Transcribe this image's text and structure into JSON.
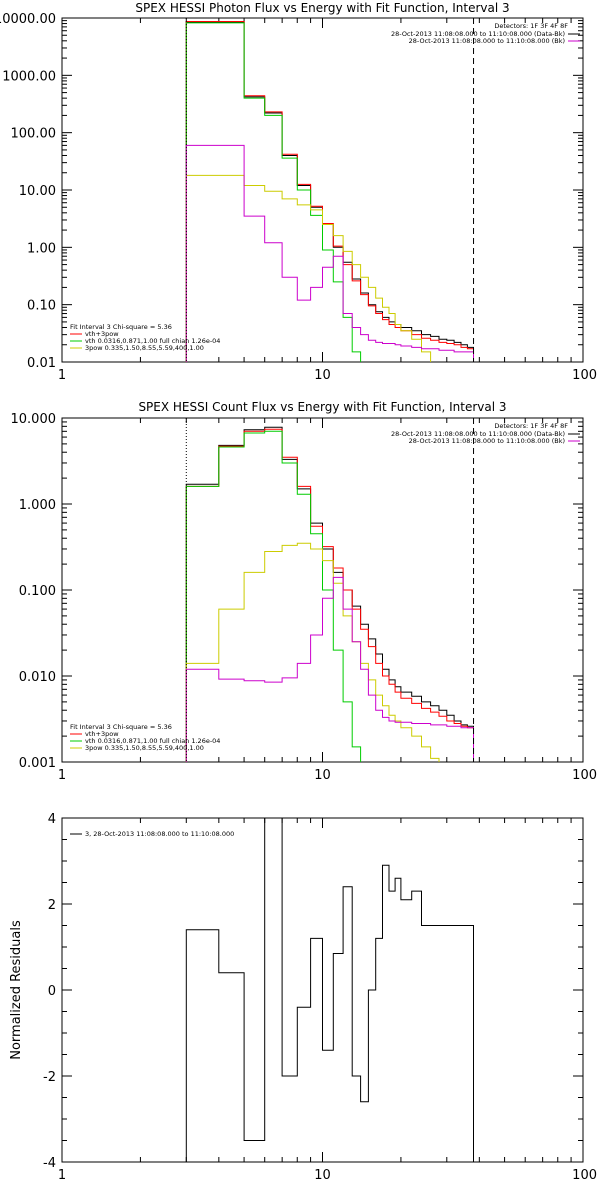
{
  "chart_data": [
    {
      "type": "line",
      "step": true,
      "title": "SPEX HESSI Photon Flux vs Energy with Fit Function, Interval 3",
      "xscale": "log",
      "yscale": "log",
      "xlim": [
        1,
        100
      ],
      "ylim": [
        0.01,
        10000
      ],
      "xticks": [
        1,
        10,
        100
      ],
      "xtick_labels": [
        "1",
        "10",
        "100"
      ],
      "yticks": [
        0.01,
        0.1,
        1,
        10,
        100,
        1000,
        10000
      ],
      "ytick_labels": [
        "0.01",
        "0.10",
        "1.00",
        "10.00",
        "100.00",
        "1000.00",
        "10000.00"
      ],
      "vlines": [
        {
          "x": 3,
          "style": "dotted"
        },
        {
          "x": 38,
          "style": "dashed"
        }
      ],
      "info": {
        "detectors": "Detectors: 1F 3F 4F 8F",
        "lines": [
          {
            "text": "28-Oct-2013 11:08:08.000 to 11:10:08.000 (Data-Bk)",
            "color": "#000000"
          },
          {
            "text": "28-Oct-2013 11:08:08.000 to 11:10:08.000 (Bk)",
            "color": "#cc00cc"
          }
        ]
      },
      "legend": {
        "header": "Fit Interval 3   Chi-square = 5.36",
        "entries": [
          {
            "text": "vth+3pow",
            "color": "#ff0000"
          },
          {
            "text": "vth 0.0316,0.871,1.00  full chian 1.26e-04",
            "color": "#00cc00"
          },
          {
            "text": "3pow 0.335,1.50,8.55,5.59,400,1.00",
            "color": "#cccc00"
          }
        ]
      },
      "series": [
        {
          "color": "#000000",
          "edges": [
            3,
            4,
            5,
            6,
            7,
            8,
            9,
            10,
            11,
            12,
            13,
            14,
            15,
            16,
            17,
            18,
            19,
            20,
            22,
            24,
            26,
            28,
            30,
            32,
            34,
            36,
            38
          ],
          "values": [
            8500,
            8500,
            420,
            220,
            40,
            12,
            5.0,
            2.5,
            1.0,
            0.55,
            0.28,
            0.16,
            0.1,
            0.075,
            0.06,
            0.05,
            0.045,
            0.04,
            0.035,
            0.03,
            0.028,
            0.025,
            0.024,
            0.022,
            0.02,
            0.018
          ]
        },
        {
          "color": "#ff0000",
          "edges": [
            3,
            4,
            5,
            6,
            7,
            8,
            9,
            10,
            11,
            12,
            13,
            14,
            15,
            16,
            17,
            18,
            19,
            20,
            22,
            24,
            26,
            28,
            30,
            32,
            34,
            36,
            38
          ],
          "values": [
            8700,
            8700,
            440,
            230,
            42,
            12.5,
            5.2,
            2.6,
            1.05,
            0.5,
            0.26,
            0.15,
            0.095,
            0.07,
            0.055,
            0.045,
            0.04,
            0.035,
            0.03,
            0.026,
            0.024,
            0.022,
            0.021,
            0.02,
            0.018,
            0.017
          ]
        },
        {
          "color": "#00cc00",
          "edges": [
            3,
            4,
            5,
            6,
            7,
            8,
            9,
            10,
            11,
            12,
            13,
            14
          ],
          "values": [
            8200,
            8200,
            400,
            200,
            36,
            10,
            3.6,
            0.9,
            0.25,
            0.06,
            0.015
          ]
        },
        {
          "color": "#cccc00",
          "edges": [
            3,
            4,
            5,
            6,
            7,
            8,
            9,
            10,
            11,
            12,
            13,
            14,
            15,
            16,
            17,
            18,
            19,
            20,
            22,
            24,
            26
          ],
          "values": [
            18,
            18,
            12,
            9.5,
            7,
            5.5,
            4.5,
            2.5,
            1.6,
            0.85,
            0.5,
            0.3,
            0.2,
            0.13,
            0.09,
            0.07,
            0.045,
            0.035,
            0.025,
            0.015
          ]
        },
        {
          "color": "#cc00cc",
          "edges": [
            3,
            4,
            5,
            6,
            7,
            8,
            9,
            10,
            11,
            12,
            13,
            14,
            15,
            16,
            17,
            18,
            19,
            20,
            22,
            24,
            26,
            28,
            30,
            32,
            34,
            36,
            38
          ],
          "values": [
            60,
            60,
            3.5,
            1.2,
            0.3,
            0.12,
            0.2,
            0.45,
            0.7,
            0.07,
            0.04,
            0.03,
            0.024,
            0.022,
            0.021,
            0.021,
            0.02,
            0.019,
            0.018,
            0.017,
            0.017,
            0.016,
            0.016,
            0.015,
            0.015,
            0.015
          ]
        }
      ]
    },
    {
      "type": "line",
      "step": true,
      "title": "SPEX HESSI Count Flux vs Energy with Fit Function, Interval 3",
      "xscale": "log",
      "yscale": "log",
      "xlim": [
        1,
        100
      ],
      "ylim": [
        0.001,
        10
      ],
      "xticks": [
        1,
        10,
        100
      ],
      "xtick_labels": [
        "1",
        "10",
        "100"
      ],
      "yticks": [
        0.001,
        0.01,
        0.1,
        1,
        10
      ],
      "ytick_labels": [
        "0.001",
        "0.010",
        "0.100",
        "1.000",
        "10.000"
      ],
      "vlines": [
        {
          "x": 3,
          "style": "dotted"
        },
        {
          "x": 38,
          "style": "dashed"
        }
      ],
      "info": {
        "detectors": "Detectors: 1F 3F 4F 8F",
        "lines": [
          {
            "text": "28-Oct-2013 11:08:08.000 to 11:10:08.000 (Data-Bk)",
            "color": "#000000"
          },
          {
            "text": "28-Oct-2013 11:08:08.000 to 11:10:08.000 (Bk)",
            "color": "#cc00cc"
          }
        ]
      },
      "legend": {
        "header": "Fit Interval 3   Chi-square = 5.36",
        "entries": [
          {
            "text": "vth+3pow",
            "color": "#ff0000"
          },
          {
            "text": "vth 0.0316,0.871,1.00  full chian 1.26e-04",
            "color": "#00cc00"
          },
          {
            "text": "3pow 0.335,1.50,8.55,5.59,400,1.00",
            "color": "#cccc00"
          }
        ]
      },
      "series": [
        {
          "color": "#000000",
          "edges": [
            3,
            4,
            5,
            6,
            7,
            8,
            9,
            10,
            11,
            12,
            13,
            14,
            15,
            16,
            17,
            18,
            19,
            20,
            22,
            24,
            26,
            28,
            30,
            32,
            34,
            36,
            38
          ],
          "values": [
            1.7,
            4.8,
            7.3,
            7.8,
            3.3,
            1.5,
            0.6,
            0.3,
            0.16,
            0.1,
            0.065,
            0.04,
            0.027,
            0.018,
            0.012,
            0.009,
            0.0075,
            0.0065,
            0.0058,
            0.005,
            0.0045,
            0.004,
            0.0035,
            0.003,
            0.0027,
            0.0026
          ]
        },
        {
          "color": "#ff0000",
          "edges": [
            3,
            4,
            5,
            6,
            7,
            8,
            9,
            10,
            11,
            12,
            13,
            14,
            15,
            16,
            17,
            18,
            19,
            20,
            22,
            24,
            26,
            28,
            30,
            32,
            34,
            36,
            38
          ],
          "values": [
            1.6,
            4.7,
            7.0,
            7.4,
            3.5,
            1.6,
            0.55,
            0.32,
            0.18,
            0.1,
            0.06,
            0.035,
            0.022,
            0.014,
            0.01,
            0.008,
            0.0065,
            0.0055,
            0.0048,
            0.0042,
            0.0038,
            0.0034,
            0.003,
            0.0028,
            0.0026,
            0.0025
          ]
        },
        {
          "color": "#00cc00",
          "edges": [
            3,
            4,
            5,
            6,
            7,
            8,
            9,
            10,
            11,
            12,
            13,
            14
          ],
          "values": [
            1.6,
            4.6,
            6.7,
            7.0,
            3.0,
            1.3,
            0.45,
            0.1,
            0.02,
            0.005,
            0.0015
          ]
        },
        {
          "color": "#cccc00",
          "edges": [
            3,
            4,
            5,
            6,
            7,
            8,
            9,
            10,
            11,
            12,
            13,
            14,
            15,
            16,
            17,
            18,
            19,
            20,
            22,
            24,
            26,
            28
          ],
          "values": [
            0.014,
            0.06,
            0.16,
            0.28,
            0.33,
            0.35,
            0.3,
            0.22,
            0.12,
            0.05,
            0.025,
            0.014,
            0.009,
            0.006,
            0.0045,
            0.0035,
            0.003,
            0.0025,
            0.002,
            0.0015,
            0.0011
          ]
        },
        {
          "color": "#cc00cc",
          "edges": [
            3,
            4,
            5,
            6,
            7,
            8,
            9,
            10,
            11,
            12,
            13,
            14,
            15,
            16,
            17,
            18,
            19,
            20,
            22,
            24,
            26,
            28,
            30,
            32,
            34,
            36,
            38
          ],
          "values": [
            0.012,
            0.0092,
            0.0088,
            0.0085,
            0.0095,
            0.014,
            0.03,
            0.08,
            0.14,
            0.06,
            0.025,
            0.012,
            0.006,
            0.004,
            0.0033,
            0.003,
            0.0029,
            0.0029,
            0.0028,
            0.0028,
            0.0027,
            0.0027,
            0.0026,
            0.0026,
            0.0025,
            0.0025
          ]
        }
      ]
    },
    {
      "type": "line",
      "step": true,
      "title": "",
      "ylabel": "Normalized Residuals",
      "xscale": "log",
      "yscale": "linear",
      "xlim": [
        1,
        100
      ],
      "ylim": [
        -4,
        4
      ],
      "xticks": [
        1,
        10,
        100
      ],
      "xtick_labels": [
        "1",
        "10",
        "100"
      ],
      "yticks": [
        -4,
        -2,
        0,
        2,
        4
      ],
      "ytick_labels": [
        "-4",
        "-2",
        "0",
        "2",
        "4"
      ],
      "legend": {
        "header": "",
        "entries": [
          {
            "text": "3, 28-Oct-2013 11:08:08.000 to 11:10:08.000",
            "color": "#000000"
          }
        ]
      },
      "series": [
        {
          "color": "#000000",
          "edges": [
            3,
            4,
            5,
            6,
            7,
            8,
            9,
            10,
            11,
            12,
            13,
            14,
            15,
            16,
            17,
            18,
            19,
            20,
            22,
            24,
            26,
            28,
            30,
            32,
            34,
            36,
            38
          ],
          "values": [
            1.4,
            0.4,
            -3.5,
            4.0,
            -2.0,
            -0.4,
            1.2,
            -1.4,
            0.85,
            2.4,
            -2.0,
            -2.6,
            0.0,
            1.2,
            2.9,
            2.3,
            2.6,
            2.1,
            2.3,
            1.5,
            1.5,
            1.5,
            1.5,
            1.5,
            1.5,
            1.5
          ]
        }
      ]
    }
  ]
}
